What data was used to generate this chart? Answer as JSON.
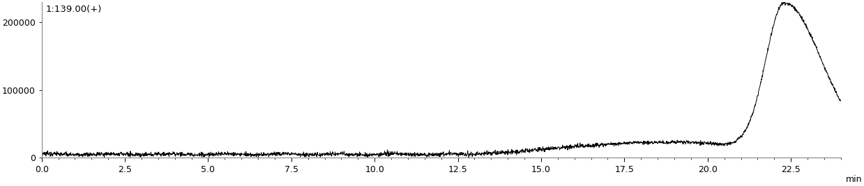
{
  "title": "1:139.00(+)",
  "xlabel": "min",
  "xlim": [
    0.0,
    24.0
  ],
  "ylim": [
    0,
    230000
  ],
  "yticks": [
    0,
    100000,
    200000
  ],
  "ytick_labels": [
    "0",
    "100000",
    "200000"
  ],
  "xticks": [
    0.0,
    2.5,
    5.0,
    7.5,
    10.0,
    12.5,
    15.0,
    17.5,
    20.0,
    22.5
  ],
  "line_color": "#000000",
  "background_color": "#ffffff",
  "peak_time": 22.3,
  "peak_height": 210000,
  "baseline": 5000,
  "noise_amplitude": 2000,
  "rise_start": 13.0
}
